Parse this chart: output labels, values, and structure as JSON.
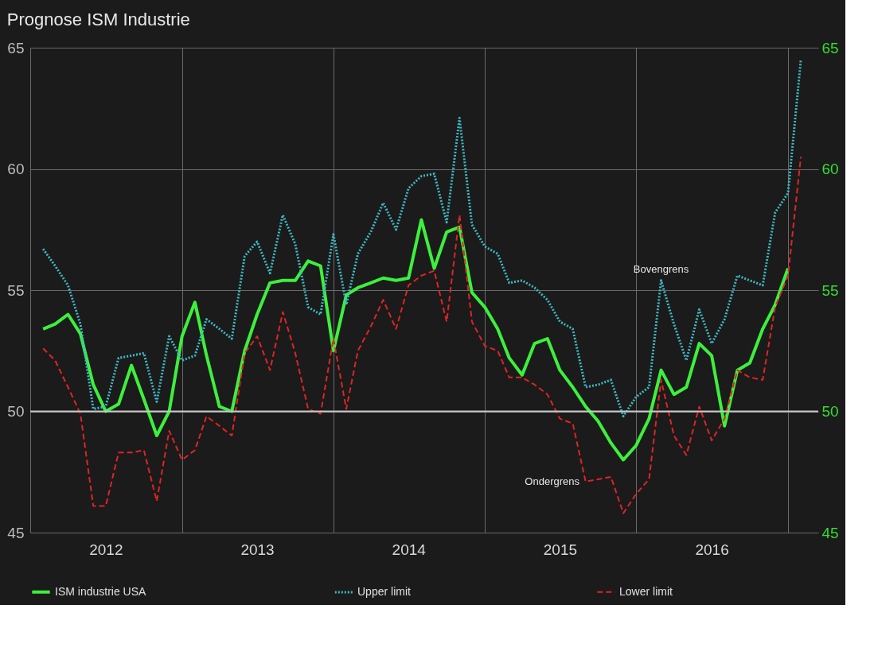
{
  "chart_data": {
    "type": "line",
    "title": "Prognose ISM Industrie",
    "x": [
      "2012-02",
      "2012-03",
      "2012-04",
      "2012-05",
      "2012-06",
      "2012-07",
      "2012-08",
      "2012-09",
      "2012-10",
      "2012-11",
      "2012-12",
      "2013-01",
      "2013-02",
      "2013-03",
      "2013-04",
      "2013-05",
      "2013-06",
      "2013-07",
      "2013-08",
      "2013-09",
      "2013-10",
      "2013-11",
      "2013-12",
      "2014-01",
      "2014-02",
      "2014-03",
      "2014-04",
      "2014-05",
      "2014-06",
      "2014-07",
      "2014-08",
      "2014-09",
      "2014-10",
      "2014-11",
      "2014-12",
      "2015-01",
      "2015-02",
      "2015-03",
      "2015-04",
      "2015-05",
      "2015-06",
      "2015-07",
      "2015-08",
      "2015-09",
      "2015-10",
      "2015-11",
      "2015-12",
      "2016-01",
      "2016-02",
      "2016-03",
      "2016-04",
      "2016-05",
      "2016-06",
      "2016-07",
      "2016-08",
      "2016-09",
      "2016-10",
      "2016-11",
      "2016-12",
      "2017-01",
      "2017-02"
    ],
    "series": [
      {
        "name": "ISM industrie USA",
        "color": "#3cf03c",
        "line_style": "solid",
        "values": [
          53.4,
          53.6,
          54.0,
          53.2,
          51.1,
          50.0,
          50.3,
          51.9,
          50.5,
          49.0,
          50.0,
          53.1,
          54.5,
          52.3,
          50.2,
          50.0,
          52.5,
          54.0,
          55.3,
          55.4,
          55.4,
          56.2,
          56.0,
          52.5,
          54.8,
          55.1,
          55.3,
          55.5,
          55.4,
          55.5,
          57.9,
          55.9,
          57.4,
          57.6,
          54.9,
          54.3,
          53.4,
          52.2,
          51.5,
          52.8,
          53.0,
          51.7,
          51.0,
          50.2,
          49.6,
          48.7,
          48.0,
          48.6,
          49.7,
          51.7,
          50.7,
          51.0,
          52.8,
          52.3,
          49.4,
          51.7,
          52.0,
          53.4,
          54.4,
          55.9,
          null
        ]
      },
      {
        "name": "Upper limit",
        "color": "#3fb8c4",
        "line_style": "dotted",
        "values": [
          56.7,
          56.0,
          55.2,
          53.6,
          50.1,
          50.2,
          52.2,
          52.3,
          52.4,
          50.4,
          53.1,
          52.1,
          52.3,
          53.8,
          53.4,
          53.0,
          56.4,
          57.0,
          55.7,
          58.1,
          56.9,
          54.3,
          54.0,
          57.3,
          54.4,
          56.5,
          57.4,
          58.6,
          57.5,
          59.2,
          59.7,
          59.8,
          57.8,
          62.1,
          57.7,
          56.8,
          56.5,
          55.3,
          55.4,
          55.1,
          54.6,
          53.7,
          53.4,
          51.0,
          51.1,
          51.3,
          49.8,
          50.6,
          51.0,
          55.4,
          53.6,
          52.1,
          54.2,
          52.8,
          53.8,
          55.6,
          55.4,
          55.2,
          58.2,
          59.0,
          64.5
        ]
      },
      {
        "name": "Lower limit",
        "color": "#e02424",
        "line_style": "dashed",
        "values": [
          52.6,
          52.1,
          51.0,
          49.9,
          46.1,
          46.1,
          48.3,
          48.3,
          48.4,
          46.3,
          49.2,
          48.0,
          48.4,
          49.8,
          49.4,
          49.0,
          52.4,
          53.1,
          51.7,
          54.1,
          52.4,
          50.1,
          49.9,
          53.0,
          50.1,
          52.5,
          53.5,
          54.6,
          53.4,
          55.2,
          55.6,
          55.8,
          53.7,
          58.1,
          53.7,
          52.7,
          52.5,
          51.4,
          51.4,
          51.1,
          50.7,
          49.7,
          49.5,
          47.1,
          47.2,
          47.3,
          45.8,
          46.6,
          47.2,
          51.3,
          49.0,
          48.2,
          50.2,
          48.8,
          49.7,
          51.7,
          51.4,
          51.3,
          54.3,
          55.6,
          60.5
        ]
      }
    ],
    "xlim": [
      "2012-01",
      "2017-03-15"
    ],
    "xticks": [
      {
        "value": "2012-01",
        "label": null
      },
      {
        "value": "2012-07",
        "label": "2012"
      },
      {
        "value": "2013-01",
        "label": null
      },
      {
        "value": "2013-07",
        "label": "2013"
      },
      {
        "value": "2014-01",
        "label": null
      },
      {
        "value": "2014-07",
        "label": "2014"
      },
      {
        "value": "2015-01",
        "label": null
      },
      {
        "value": "2015-07",
        "label": "2015"
      },
      {
        "value": "2016-01",
        "label": null
      },
      {
        "value": "2016-07",
        "label": "2016"
      },
      {
        "value": "2017-01",
        "label": null
      }
    ],
    "ylim": [
      45,
      65
    ],
    "yticks": [
      45,
      50,
      55,
      60,
      65
    ],
    "y2lim": [
      45,
      65
    ],
    "y2ticks": [
      45,
      50,
      55,
      60,
      65
    ],
    "ref_lines": [
      {
        "axis": "y",
        "value": 50,
        "color": "#c8c8c8"
      }
    ],
    "annotations": [
      {
        "text": "Bovengrens",
        "x": "2016-03",
        "y": 55.4
      },
      {
        "text": "Ondergrens",
        "x": "2015-09",
        "y": 47.1
      }
    ],
    "grid": true,
    "legend": "bottom"
  }
}
